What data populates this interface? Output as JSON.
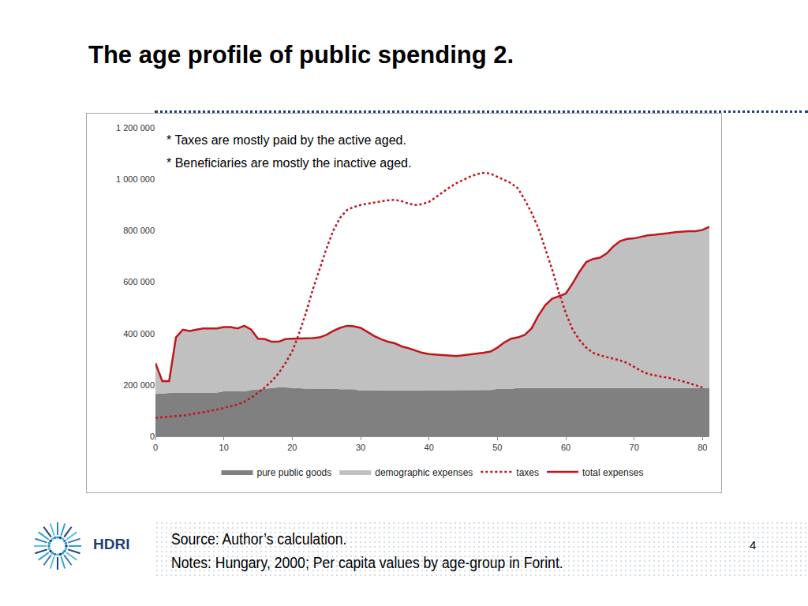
{
  "slide": {
    "title": "The age profile of public spending 2.",
    "source": "Source: Author’s calculation.",
    "notes": "Notes: Hungary, 2000; Per capita values by age-group in Forint.",
    "page": "4",
    "logo": "HDRI"
  },
  "chart_data": {
    "type": "area",
    "stacked": true,
    "grid": false,
    "legend": "bottom",
    "annotations": [
      "* Taxes are mostly paid by the active aged.",
      "* Beneficiaries are mostly the inactive aged."
    ],
    "x": [
      0,
      1,
      2,
      3,
      4,
      5,
      6,
      7,
      8,
      9,
      10,
      11,
      12,
      13,
      14,
      15,
      16,
      17,
      18,
      19,
      20,
      21,
      22,
      23,
      24,
      25,
      26,
      27,
      28,
      29,
      30,
      31,
      32,
      33,
      34,
      35,
      36,
      37,
      38,
      39,
      40,
      41,
      42,
      43,
      44,
      45,
      46,
      47,
      48,
      49,
      50,
      51,
      52,
      53,
      54,
      55,
      56,
      57,
      58,
      59,
      60,
      61,
      62,
      63,
      64,
      65,
      66,
      67,
      68,
      69,
      70,
      71,
      72,
      73,
      74,
      75,
      76,
      77,
      78,
      79,
      80,
      81
    ],
    "xlim": [
      0,
      81
    ],
    "xticks": [
      0,
      10,
      20,
      30,
      40,
      50,
      60,
      70,
      80
    ],
    "ylim": [
      0,
      1200000
    ],
    "yticks": [
      0,
      {
        "value": 200000,
        "label": "200 000"
      },
      {
        "value": 400000,
        "label": "400 000"
      },
      {
        "value": 600000,
        "label": "600 000"
      },
      {
        "value": 800000,
        "label": "800 000"
      },
      {
        "value": 1000000,
        "label": "1 000 000"
      },
      {
        "value": 1200000,
        "label": "1 200 000"
      }
    ],
    "series": [
      {
        "name": "pure public goods",
        "type": "area",
        "color": "#808080",
        "values": [
          165000,
          167000,
          168000,
          170000,
          170000,
          170000,
          170000,
          170000,
          170000,
          170000,
          175000,
          175000,
          175000,
          175000,
          180000,
          183000,
          186000,
          188000,
          190000,
          190000,
          188000,
          186000,
          186000,
          186000,
          186000,
          186000,
          186000,
          183000,
          183000,
          183000,
          178000,
          178000,
          178000,
          178000,
          178000,
          178000,
          178000,
          178000,
          178000,
          178000,
          178000,
          178000,
          178000,
          178000,
          178000,
          180000,
          180000,
          180000,
          180000,
          180000,
          185000,
          185000,
          185000,
          188000,
          188000,
          188000,
          188000,
          188000,
          188000,
          188000,
          190000,
          190000,
          190000,
          190000,
          190000,
          190000,
          190000,
          190000,
          190000,
          190000,
          190000,
          190000,
          190000,
          190000,
          190000,
          190000,
          190000,
          188000,
          188000,
          188000,
          188000,
          188000
        ]
      },
      {
        "name": "demographic expenses",
        "type": "area",
        "color": "#c0c0c0",
        "values": [
          120000,
          48000,
          47000,
          215000,
          245000,
          240000,
          245000,
          250000,
          250000,
          250000,
          250000,
          250000,
          245000,
          255000,
          235000,
          197000,
          192000,
          180000,
          178000,
          188000,
          192000,
          194000,
          196000,
          196000,
          199000,
          209000,
          224000,
          239000,
          247000,
          245000,
          244000,
          227000,
          212000,
          200000,
          190000,
          184000,
          172000,
          165000,
          157000,
          147000,
          142000,
          140000,
          138000,
          135000,
          134000,
          135000,
          138000,
          142000,
          145000,
          150000,
          160000,
          180000,
          195000,
          197000,
          207000,
          232000,
          282000,
          322000,
          347000,
          357000,
          365000,
          405000,
          450000,
          488000,
          500000,
          505000,
          522000,
          550000,
          570000,
          578000,
          580000,
          586000,
          592000,
          594000,
          596000,
          600000,
          604000,
          609000,
          610000,
          610000,
          615000,
          627000
        ]
      },
      {
        "name": "taxes",
        "type": "line",
        "line_style": "dotted",
        "color": "#c0161c",
        "values": [
          72000,
          74000,
          76000,
          78000,
          81000,
          85000,
          89000,
          94000,
          99000,
          104000,
          110000,
          117000,
          124000,
          135000,
          150000,
          170000,
          190000,
          215000,
          245000,
          285000,
          330000,
          400000,
          480000,
          570000,
          650000,
          730000,
          800000,
          850000,
          880000,
          892000,
          900000,
          905000,
          910000,
          915000,
          918000,
          920000,
          915000,
          905000,
          900000,
          903000,
          912000,
          930000,
          950000,
          968000,
          985000,
          998000,
          1010000,
          1020000,
          1025000,
          1022000,
          1010000,
          998000,
          985000,
          965000,
          920000,
          870000,
          810000,
          730000,
          650000,
          560000,
          480000,
          415000,
          375000,
          345000,
          325000,
          315000,
          308000,
          302000,
          295000,
          285000,
          270000,
          255000,
          243000,
          237000,
          232000,
          228000,
          222000,
          215000,
          207000,
          198000,
          190000,
          null
        ]
      },
      {
        "name": "total expenses",
        "type": "line",
        "line_style": "solid",
        "color": "#c0161c",
        "values": [
          285000,
          215000,
          215000,
          385000,
          415000,
          410000,
          415000,
          420000,
          420000,
          420000,
          425000,
          425000,
          420000,
          430000,
          415000,
          380000,
          378000,
          368000,
          368000,
          378000,
          380000,
          380000,
          382000,
          382000,
          385000,
          395000,
          410000,
          422000,
          430000,
          428000,
          422000,
          405000,
          390000,
          378000,
          368000,
          362000,
          350000,
          343000,
          335000,
          325000,
          320000,
          318000,
          316000,
          313000,
          312000,
          315000,
          318000,
          322000,
          325000,
          330000,
          345000,
          365000,
          380000,
          385000,
          395000,
          420000,
          470000,
          510000,
          535000,
          545000,
          555000,
          595000,
          640000,
          678000,
          690000,
          695000,
          712000,
          740000,
          760000,
          768000,
          770000,
          776000,
          782000,
          784000,
          786000,
          790000,
          794000,
          797000,
          798000,
          798000,
          803000,
          815000
        ]
      }
    ]
  }
}
